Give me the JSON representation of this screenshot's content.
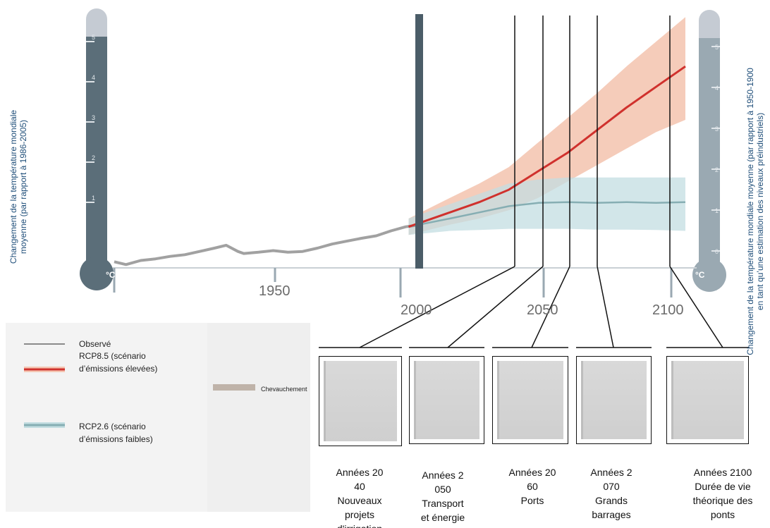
{
  "y_axis": {
    "left_label_lines": [
      "Changement de la température mondiale",
      "moyenne (par rapport à 1986-2005)"
    ],
    "right_label_lines": [
      "Changement de la température mondiale moyenne (par rapport à 1950-1900",
      "en tant qu’une estimation des niveaux préindustriels)"
    ],
    "left_unit": "°C",
    "right_unit": "°C",
    "left_ticks": [
      "1",
      "2",
      "3",
      "4",
      "5"
    ],
    "right_ticks": [
      "0",
      "1",
      "2",
      "3",
      "4",
      "5"
    ]
  },
  "x_axis": {
    "ticks": [
      "1950",
      "2000",
      "2050",
      "2100"
    ]
  },
  "legend": {
    "observed": "Observé",
    "rcp85_line1": "RCP8.5 (scénario",
    "rcp85_line2": "d’émissions élevées)",
    "overlap": "Chevauchement",
    "rcp26_line1": "RCP2.6 (scénario",
    "rcp26_line2": "d’émissions faibles)"
  },
  "captions": [
    {
      "lines": [
        "Années 20",
        "40",
        "Nouveaux",
        "projets",
        "d'irrigation"
      ]
    },
    {
      "lines": [
        "Années 2",
        "050",
        "Transport",
        "et énergie"
      ]
    },
    {
      "lines": [
        "Années 20",
        "60",
        "Ports"
      ]
    },
    {
      "lines": [
        "Années 2",
        "070",
        "Grands",
        "barrages"
      ]
    },
    {
      "lines": [
        "Années 2100",
        "Durée de vie",
        "théorique des",
        "ponts"
      ]
    }
  ],
  "colors": {
    "observed": "#8a8a8a",
    "rcp85": "#d0312d",
    "rcp85_band": "#f4c6b3",
    "rcp26": "#86aeb3",
    "rcp26_band": "#c3dde1",
    "overlap": "#bfb3a9",
    "thermometer_left": "#5b6e79",
    "thermometer_right": "#9aa9b2",
    "thermometer_cap": "#c5cbd3",
    "divider": "#4b5d68"
  },
  "chart_data": {
    "type": "line",
    "x_range": [
      1906,
      2100
    ],
    "y_range": [
      -0.6,
      5.4
    ],
    "series": [
      {
        "name": "Observé",
        "points": [
          [
            1906,
            -0.45
          ],
          [
            1910,
            -0.52
          ],
          [
            1915,
            -0.42
          ],
          [
            1920,
            -0.38
          ],
          [
            1925,
            -0.32
          ],
          [
            1930,
            -0.28
          ],
          [
            1935,
            -0.2
          ],
          [
            1940,
            -0.12
          ],
          [
            1944,
            -0.05
          ],
          [
            1948,
            -0.2
          ],
          [
            1950,
            -0.25
          ],
          [
            1955,
            -0.22
          ],
          [
            1960,
            -0.18
          ],
          [
            1965,
            -0.22
          ],
          [
            1970,
            -0.2
          ],
          [
            1975,
            -0.12
          ],
          [
            1980,
            -0.02
          ],
          [
            1985,
            0.05
          ],
          [
            1990,
            0.12
          ],
          [
            1995,
            0.18
          ],
          [
            2000,
            0.3
          ],
          [
            2005,
            0.4
          ],
          [
            2010,
            0.45
          ]
        ]
      },
      {
        "name": "RCP8.5 (scénario d’émissions élevées)",
        "points": [
          [
            2006,
            0.4
          ],
          [
            2020,
            0.75
          ],
          [
            2030,
            1.0
          ],
          [
            2040,
            1.3
          ],
          [
            2050,
            1.75
          ],
          [
            2060,
            2.2
          ],
          [
            2070,
            2.75
          ],
          [
            2080,
            3.3
          ],
          [
            2090,
            3.8
          ],
          [
            2100,
            4.3
          ]
        ],
        "range_low": [
          0.2,
          0.45,
          0.6,
          0.8,
          1.1,
          1.5,
          1.9,
          2.3,
          2.7,
          3.0
        ],
        "range_high": [
          0.6,
          1.1,
          1.45,
          1.85,
          2.45,
          3.05,
          3.65,
          4.3,
          4.9,
          5.5
        ]
      },
      {
        "name": "RCP2.6 (scénario d’émissions faibles)",
        "points": [
          [
            2006,
            0.4
          ],
          [
            2020,
            0.6
          ],
          [
            2030,
            0.75
          ],
          [
            2040,
            0.9
          ],
          [
            2050,
            0.98
          ],
          [
            2060,
            1.0
          ],
          [
            2070,
            0.98
          ],
          [
            2080,
            1.0
          ],
          [
            2090,
            0.98
          ],
          [
            2100,
            1.0
          ]
        ],
        "range_low": [
          0.2,
          0.3,
          0.32,
          0.35,
          0.35,
          0.35,
          0.33,
          0.33,
          0.32,
          0.3
        ],
        "range_high": [
          0.6,
          0.95,
          1.2,
          1.45,
          1.55,
          1.6,
          1.6,
          1.6,
          1.6,
          1.6
        ]
      }
    ]
  }
}
